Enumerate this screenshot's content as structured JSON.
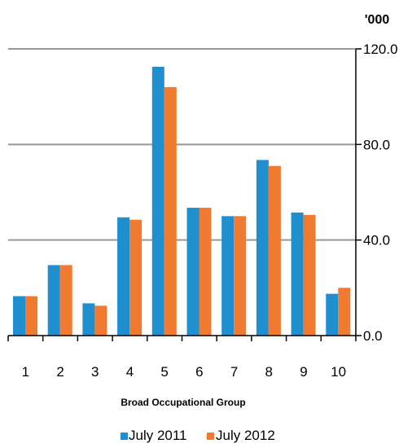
{
  "chart_data": {
    "type": "bar",
    "unit_label": "'000",
    "xlabel": "Broad Occupational Group",
    "ylabel": "",
    "ylim": [
      0,
      120
    ],
    "yticks": [
      "0.0",
      "40.0",
      "80.0",
      "120.0"
    ],
    "ytick_values": [
      0,
      40,
      80,
      120
    ],
    "y_axis_side": "right",
    "grid": true,
    "legend_position": "bottom",
    "categories": [
      "1",
      "2",
      "3",
      "4",
      "5",
      "6",
      "7",
      "8",
      "9",
      "10"
    ],
    "series": [
      {
        "name": "July 2011",
        "color": "#1f8fd0",
        "values": [
          16.5,
          29.5,
          13.5,
          49.5,
          112.5,
          53.5,
          50,
          73.5,
          51.5,
          17.5
        ]
      },
      {
        "name": "July 2012",
        "color": "#f07a30",
        "values": [
          16.5,
          29.5,
          12.5,
          48.5,
          104,
          53.5,
          50,
          71,
          50.5,
          20
        ]
      }
    ]
  }
}
